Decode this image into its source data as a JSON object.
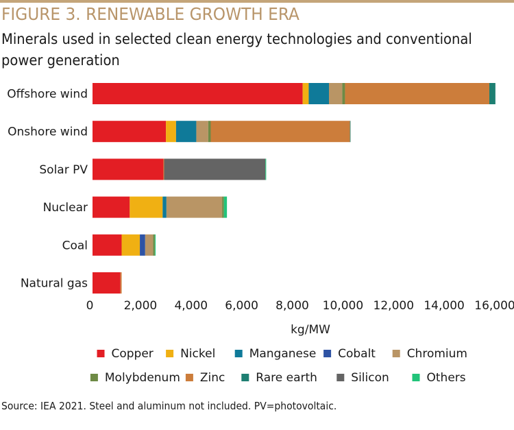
{
  "figure": {
    "title": "FIGURE 3. RENEWABLE GROWTH ERA",
    "subtitle": "Minerals used in selected clean energy technologies and conventional power generation",
    "source": "Source: IEA 2021. Steel and aluminum not included. PV=photovoltaic.",
    "accent_color": "#c4a57a",
    "title_color": "#b8956a"
  },
  "chart_data": {
    "type": "bar",
    "orientation": "horizontal",
    "stacked": true,
    "title": "FIGURE 3. RENEWABLE GROWTH ERA",
    "subtitle": "Minerals used in selected clean energy technologies and conventional power generation",
    "xlabel": "kg/MW",
    "ylabel": "",
    "xlim": [
      0,
      16000
    ],
    "xticks": [
      0,
      2000,
      4000,
      6000,
      8000,
      10000,
      12000,
      14000,
      16000
    ],
    "xtick_labels": [
      "0",
      "2,000",
      "4,000",
      "6,000",
      "8,000",
      "10,000",
      "12,000",
      "14,000",
      "16,000"
    ],
    "grid": false,
    "legend_position": "bottom",
    "categories": [
      "Offshore wind",
      "Onshore wind",
      "Solar PV",
      "Nuclear",
      "Coal",
      "Natural gas"
    ],
    "series": [
      {
        "name": "Copper",
        "color": "#e31e24",
        "values": [
          8300,
          2900,
          2800,
          1470,
          1150,
          1100
        ]
      },
      {
        "name": "Nickel",
        "color": "#f0b013",
        "values": [
          240,
          400,
          0,
          1300,
          720,
          0
        ]
      },
      {
        "name": "Manganese",
        "color": "#0f7a99",
        "values": [
          800,
          800,
          0,
          150,
          0,
          0
        ]
      },
      {
        "name": "Cobalt",
        "color": "#2e53a4",
        "values": [
          0,
          0,
          0,
          0,
          210,
          0
        ]
      },
      {
        "name": "Chromium",
        "color": "#b99565",
        "values": [
          525,
          470,
          0,
          2200,
          310,
          0
        ]
      },
      {
        "name": "Molybdenum",
        "color": "#6e8a45",
        "values": [
          110,
          100,
          0,
          70,
          70,
          0
        ]
      },
      {
        "name": "Zinc",
        "color": "#cc7d3b",
        "values": [
          5700,
          5500,
          30,
          0,
          0,
          50
        ]
      },
      {
        "name": "Rare earth",
        "color": "#1e7f72",
        "values": [
          240,
          15,
          0,
          0,
          0,
          0
        ]
      },
      {
        "name": "Silicon",
        "color": "#646464",
        "values": [
          0,
          0,
          4000,
          0,
          0,
          0
        ]
      },
      {
        "name": "Others",
        "color": "#22c47a",
        "values": [
          0,
          0,
          30,
          120,
          30,
          0
        ]
      }
    ]
  }
}
